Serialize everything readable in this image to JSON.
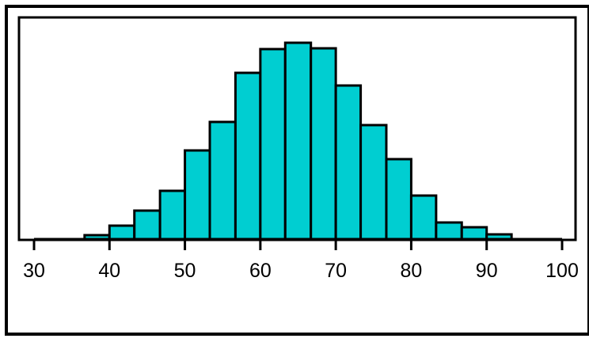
{
  "chart_data": {
    "type": "bar",
    "title": "",
    "xlabel": "",
    "ylabel": "",
    "bar_color": "#00CED1",
    "edge_color": "#000000",
    "xlim": [
      30,
      100
    ],
    "xticks": [
      "30",
      "40",
      "50",
      "60",
      "70",
      "80",
      "90",
      "100"
    ],
    "ylim": [
      0,
      250
    ],
    "grid": false,
    "bins": [
      {
        "x0": 36.7,
        "x1": 40.0,
        "value": 5
      },
      {
        "x0": 40.0,
        "x1": 43.3,
        "value": 17
      },
      {
        "x0": 43.3,
        "x1": 46.7,
        "value": 36
      },
      {
        "x0": 46.7,
        "x1": 50.0,
        "value": 61
      },
      {
        "x0": 50.0,
        "x1": 53.3,
        "value": 112
      },
      {
        "x0": 53.3,
        "x1": 56.7,
        "value": 148
      },
      {
        "x0": 56.7,
        "x1": 60.0,
        "value": 210
      },
      {
        "x0": 60.0,
        "x1": 63.3,
        "value": 240
      },
      {
        "x0": 63.3,
        "x1": 66.7,
        "value": 248
      },
      {
        "x0": 66.7,
        "x1": 70.0,
        "value": 241
      },
      {
        "x0": 70.0,
        "x1": 73.3,
        "value": 194
      },
      {
        "x0": 73.3,
        "x1": 76.7,
        "value": 144
      },
      {
        "x0": 76.7,
        "x1": 80.0,
        "value": 101
      },
      {
        "x0": 80.0,
        "x1": 83.3,
        "value": 55
      },
      {
        "x0": 83.3,
        "x1": 86.7,
        "value": 21
      },
      {
        "x0": 86.7,
        "x1": 90.0,
        "value": 15
      },
      {
        "x0": 90.0,
        "x1": 93.3,
        "value": 6
      }
    ]
  }
}
